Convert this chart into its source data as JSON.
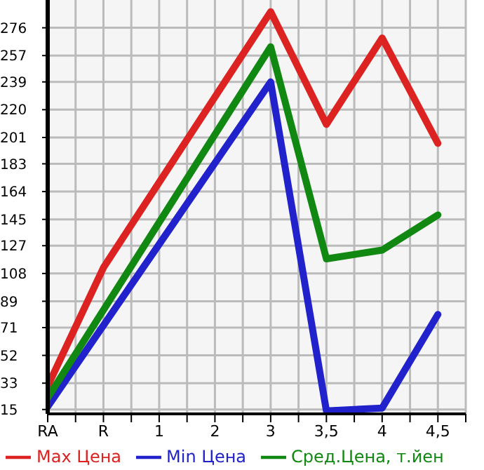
{
  "chart_data": {
    "type": "line",
    "categories": [
      "RA",
      "R",
      "1",
      "2",
      "3",
      "3,5",
      "4",
      "4,5"
    ],
    "series": [
      {
        "name": "Max Цена",
        "color": "#dd2222",
        "values": [
          31,
          112,
          null,
          null,
          287,
          210,
          269,
          197
        ]
      },
      {
        "name": "Min Цена",
        "color": "#2222cc",
        "values": [
          17,
          null,
          null,
          null,
          239,
          14,
          16,
          80
        ]
      },
      {
        "name": "Сред.Цена, т.йен",
        "color": "#118811",
        "values": [
          23,
          null,
          null,
          null,
          263,
          118,
          124,
          148
        ]
      }
    ],
    "ylim": [
      12,
      295
    ],
    "yticks": [
      15,
      33,
      52,
      71,
      89,
      108,
      127,
      145,
      164,
      183,
      201,
      220,
      239,
      257,
      276
    ],
    "grid": true,
    "legend": "bottom",
    "marker": "none",
    "line_style": "solid"
  }
}
